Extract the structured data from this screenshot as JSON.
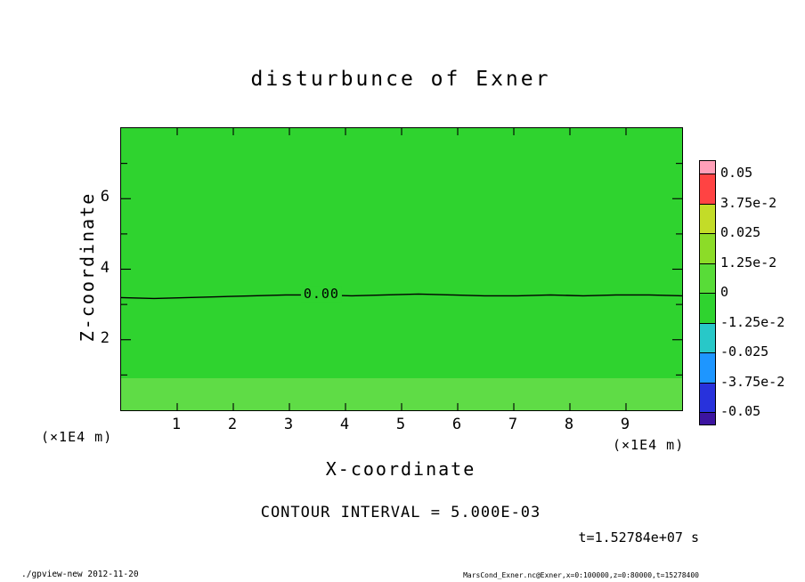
{
  "page": {
    "background": "#ffffff"
  },
  "chart_data": {
    "type": "heatmap",
    "plot_kind": "filled-contour",
    "title": "disturbunce of Exner",
    "xlabel": "X-coordinate",
    "ylabel": "Z-coordinate",
    "x_unit_label": "(×1E4 m)",
    "y_unit_label": "(×1E4 m)",
    "xlim": [
      0,
      10
    ],
    "ylim": [
      0,
      8
    ],
    "x_ticks": [
      1,
      2,
      3,
      4,
      5,
      6,
      7,
      8,
      9
    ],
    "y_ticks": [
      2,
      4,
      6
    ],
    "y_minor_ticks": [
      1,
      2,
      3,
      4,
      5,
      6,
      7
    ],
    "grid": false,
    "contour_interval_label": "CONTOUR INTERVAL = 5.000E-03",
    "time_label": "t=1.52784e+07 s",
    "contours": [
      {
        "label": "0.00",
        "level": 0,
        "z_position": 3.27,
        "label_x": 3.57
      }
    ],
    "regions": [
      {
        "name": "field",
        "z_from": 0,
        "z_to": 8,
        "color": "#2fd32f"
      },
      {
        "name": "bottom-strip",
        "z_from": 0,
        "z_to": 0.9,
        "color": "#5fdc46"
      }
    ],
    "colorbar": {
      "position": "right",
      "labels": [
        "0.05",
        "3.75e-2",
        "0.025",
        "1.25e-2",
        "0",
        "-1.25e-2",
        "-0.025",
        "-3.75e-2",
        "-0.05"
      ],
      "colors": [
        "#ff9fb8",
        "#ff4343",
        "#c3dc28",
        "#8cdc28",
        "#58dc38",
        "#2fd32f",
        "#28c8c8",
        "#1e96ff",
        "#2832dc",
        "#3c14a0"
      ]
    }
  },
  "footer": {
    "left": "./gpview-new  2012-11-20",
    "right": "MarsCond_Exner.nc@Exner,x=0:100000,z=0:80000,t=15278400"
  }
}
